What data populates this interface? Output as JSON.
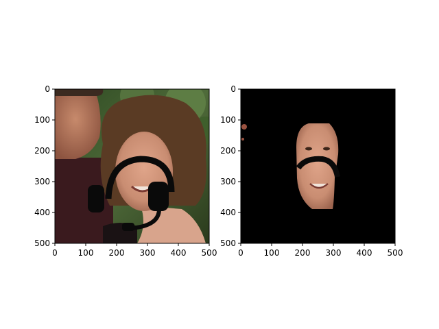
{
  "figure": {
    "panels": [
      {
        "name": "original-photo",
        "xlim": [
          0,
          500
        ],
        "ylim": [
          500,
          0
        ],
        "x_ticks": [
          "0",
          "100",
          "200",
          "300",
          "400",
          "500"
        ],
        "y_ticks": [
          "0",
          "100",
          "200",
          "300",
          "400",
          "500"
        ],
        "content": "photo of two people, a man at left and a smiling woman with brown wavy hair at right, a black headset drawn over her face"
      },
      {
        "name": "segmented-face",
        "xlim": [
          0,
          500
        ],
        "ylim": [
          500,
          0
        ],
        "x_ticks": [
          "0",
          "100",
          "200",
          "300",
          "400",
          "500"
        ],
        "y_ticks": [
          "0",
          "100",
          "200",
          "300",
          "400",
          "500"
        ],
        "content": "the woman's face region isolated on a black background, with the headset band cutting across it"
      }
    ]
  },
  "colors": {
    "foliage": "#3c5a2e",
    "hair": "#5a3b24",
    "skin": "#c98d72",
    "man_shirt": "#3a1a1e",
    "headset": "#0a0a0a",
    "mask_bg": "#000000"
  }
}
